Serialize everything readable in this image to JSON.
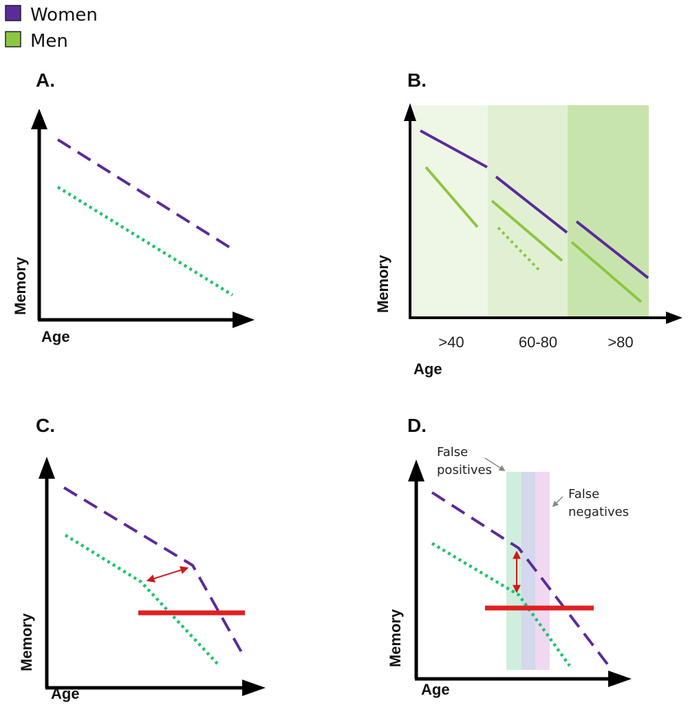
{
  "colors": {
    "women": "#5b2a9b",
    "men": "#8dc63f",
    "men_dotted": "#1ec46a",
    "threshold": "#e02020",
    "gap_arrow": "#d01818",
    "axis": "#000000",
    "band_40": "#eef6e6",
    "band_60_80": "#e1f0d3",
    "band_80": "#c8e4ad",
    "false_pos_band": "#cfeedd",
    "overlap_band": "#d4d8ec",
    "false_neg_band": "#f1d8f1",
    "annot_arrow": "#888888"
  },
  "legend": [
    {
      "label": "Women",
      "color_key": "women"
    },
    {
      "label": "Men",
      "color_key": "men"
    }
  ],
  "panels": {
    "a": {
      "label": "A.",
      "y_label": "Memory",
      "x_label": "Age"
    },
    "b": {
      "label": "B.",
      "y_label": "Memory",
      "x_label": "Age",
      "categories": [
        ">40",
        "60-80",
        ">80"
      ]
    },
    "c": {
      "label": "C.",
      "y_label": "Memory",
      "x_label": "Age"
    },
    "d": {
      "label": "D.",
      "y_label": "Memory",
      "x_label": "Age",
      "annotations": {
        "false_positives": [
          "False",
          "positives"
        ],
        "false_negatives": [
          "False",
          "negatives"
        ]
      }
    }
  },
  "icons": {
    "women_swatch": "square-swatch",
    "men_swatch": "square-swatch",
    "axis_arrow": "triangle-arrowhead"
  }
}
